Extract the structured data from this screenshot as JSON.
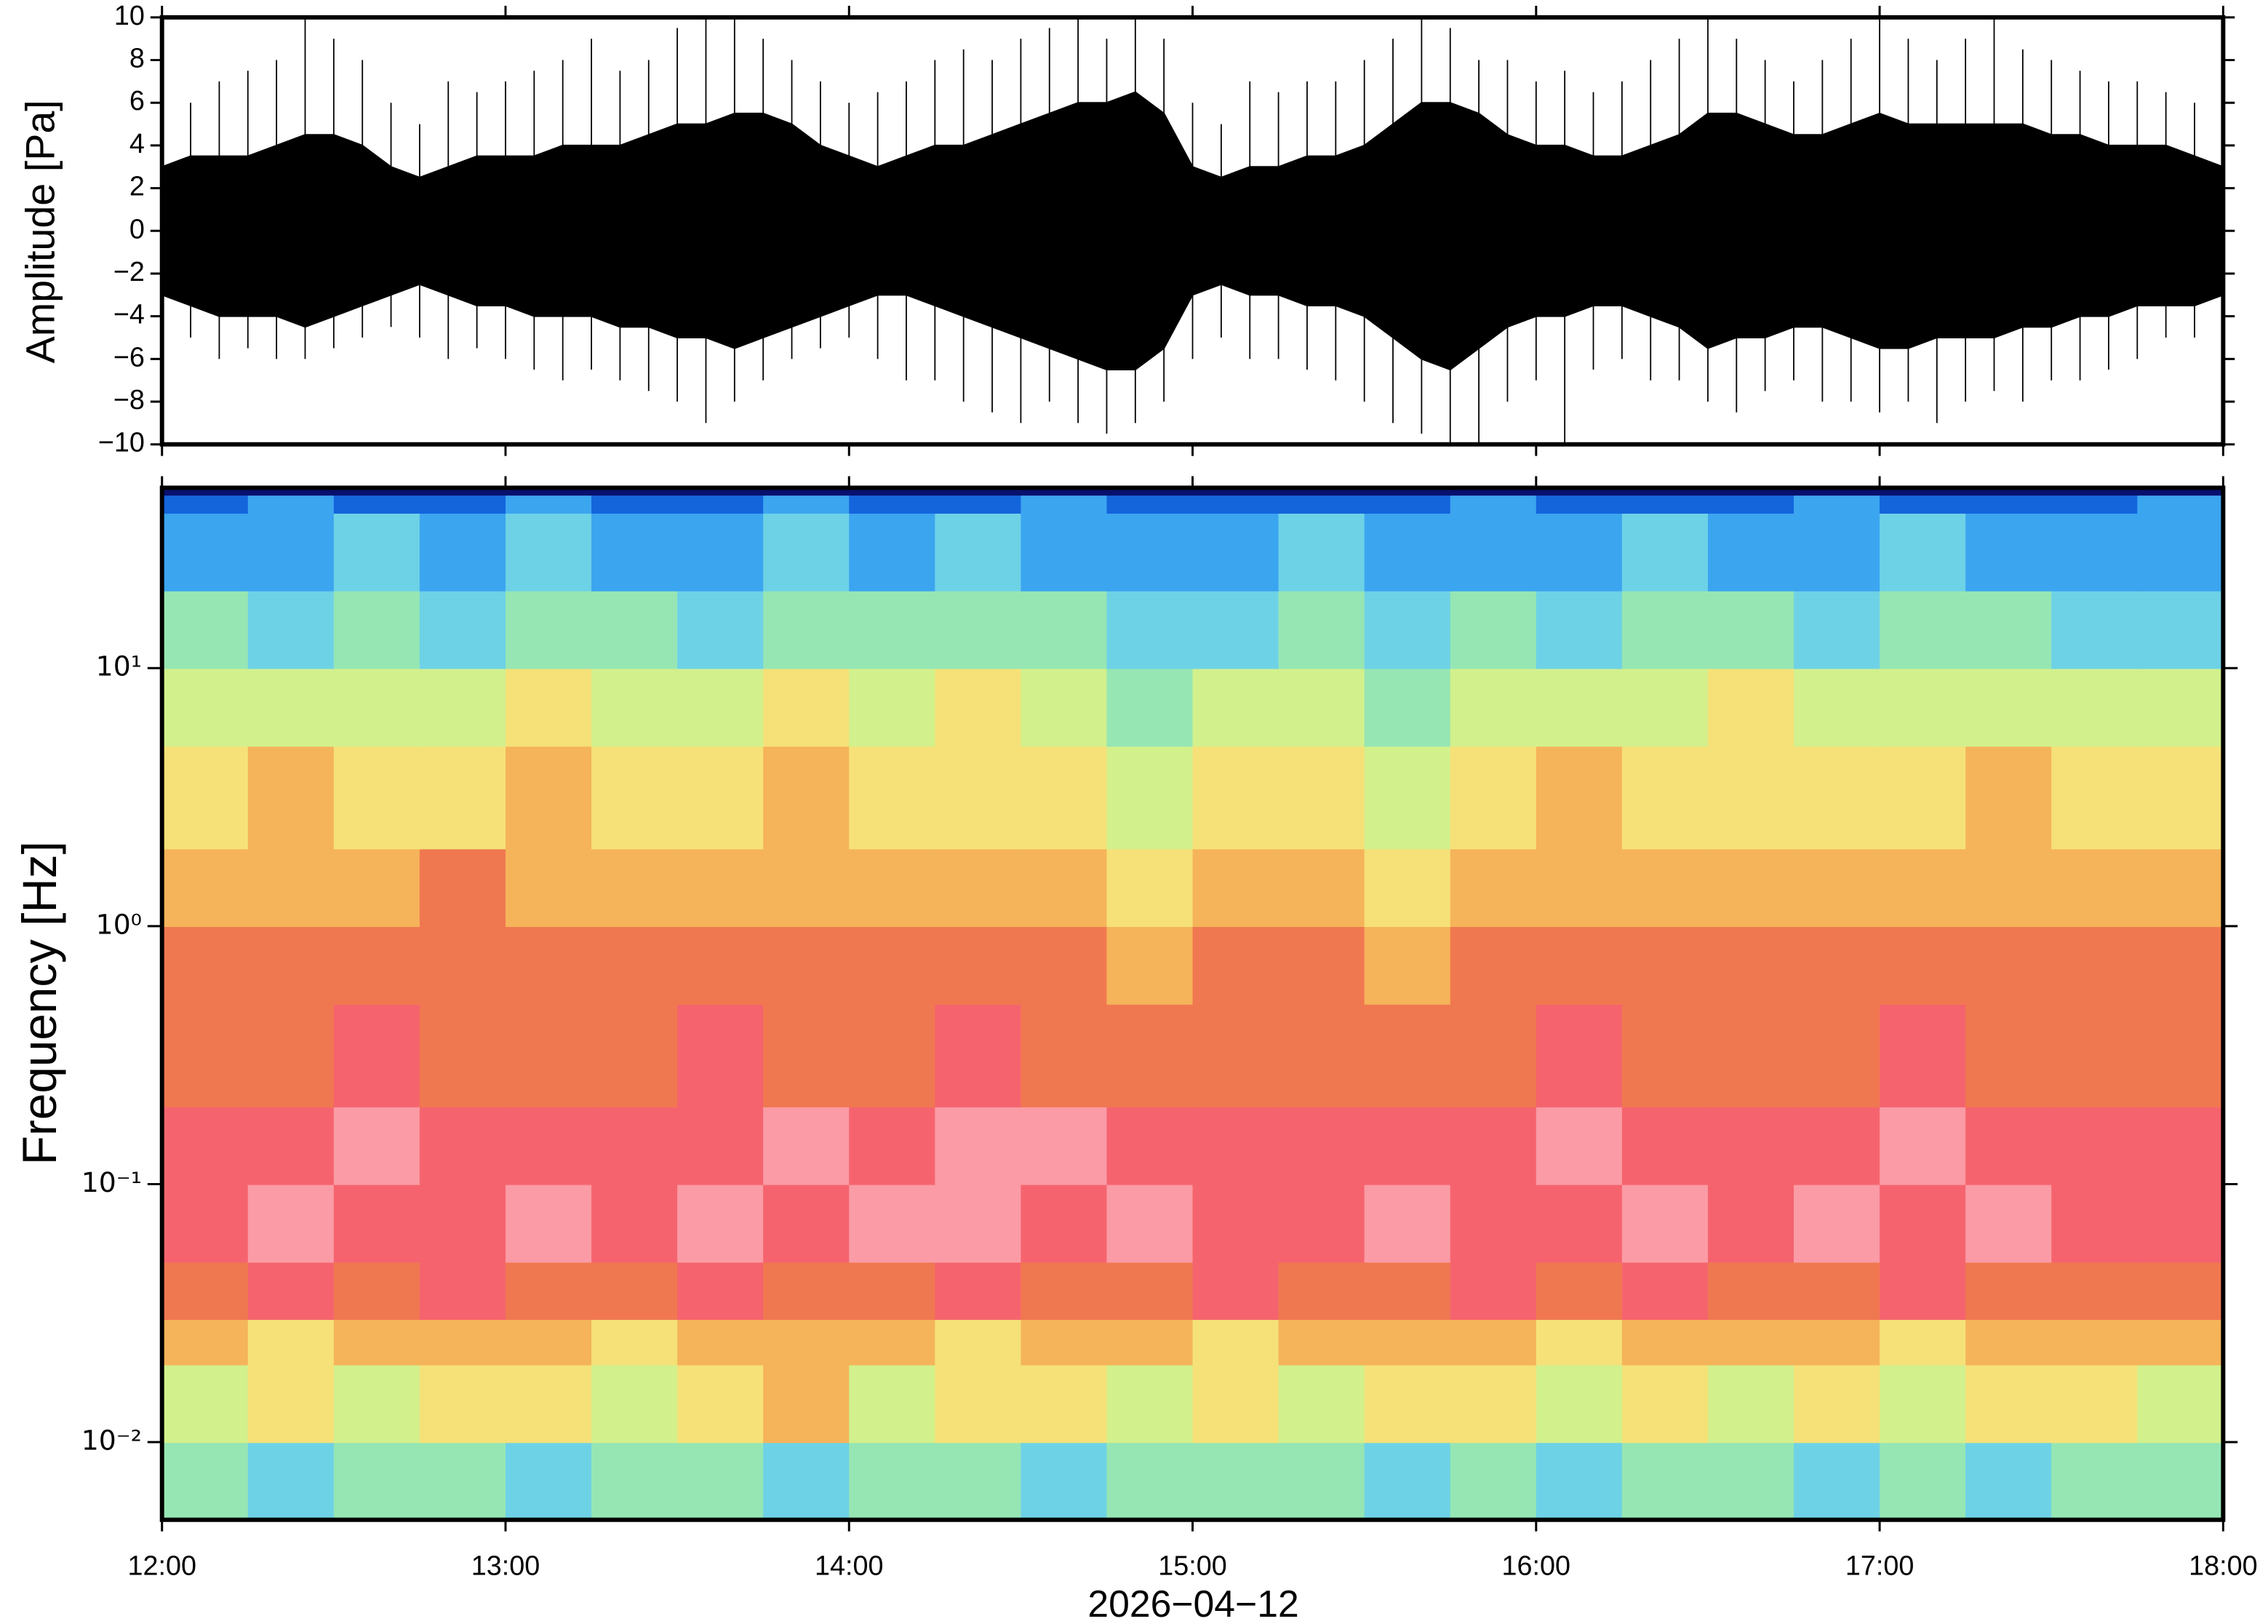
{
  "chart_data": [
    {
      "type": "waveform",
      "ylabel": "Amplitude [Pa]",
      "xlim": [
        0,
        360
      ],
      "xticks": [
        0,
        60,
        120,
        180,
        240,
        300,
        360
      ],
      "ylim": [
        -10,
        10
      ],
      "yticks": [
        {
          "value": -10,
          "label": "−10"
        },
        {
          "value": -8,
          "label": "−8"
        },
        {
          "value": -6,
          "label": "−6"
        },
        {
          "value": -4,
          "label": "−4"
        },
        {
          "value": -2,
          "label": "−2"
        },
        0,
        2,
        4,
        6,
        8,
        10
      ],
      "color": "#000000",
      "x": [
        0,
        5,
        10,
        15,
        20,
        25,
        30,
        35,
        40,
        45,
        50,
        55,
        60,
        65,
        70,
        75,
        80,
        85,
        90,
        95,
        100,
        105,
        110,
        115,
        120,
        125,
        130,
        135,
        140,
        145,
        150,
        155,
        160,
        165,
        170,
        175,
        180,
        185,
        190,
        195,
        200,
        205,
        210,
        215,
        220,
        225,
        230,
        235,
        240,
        245,
        250,
        255,
        260,
        265,
        270,
        275,
        280,
        285,
        290,
        295,
        300,
        305,
        310,
        315,
        320,
        325,
        330,
        335,
        340,
        345,
        350,
        355,
        360
      ],
      "core_upper": [
        3,
        3.5,
        3.5,
        3.5,
        4,
        4.5,
        4.5,
        4,
        3,
        2.5,
        3,
        3.5,
        3.5,
        3.5,
        4,
        4,
        4,
        4.5,
        5,
        5,
        5.5,
        5.5,
        5,
        4,
        3.5,
        3,
        3.5,
        4,
        4,
        4.5,
        5,
        5.5,
        6,
        6,
        6.5,
        5.5,
        3,
        2.5,
        3,
        3,
        3.5,
        3.5,
        4,
        5,
        6,
        6,
        5.5,
        4.5,
        4,
        4,
        3.5,
        3.5,
        4,
        4.5,
        5.5,
        5.5,
        5,
        4.5,
        4.5,
        5,
        5.5,
        5,
        5,
        5,
        5,
        5,
        4.5,
        4.5,
        4,
        4,
        4,
        3.5,
        3
      ],
      "core_lower": [
        -3,
        -3.5,
        -4,
        -4,
        -4,
        -4.5,
        -4,
        -3.5,
        -3,
        -2.5,
        -3,
        -3.5,
        -3.5,
        -4,
        -4,
        -4,
        -4.5,
        -4.5,
        -5,
        -5,
        -5.5,
        -5,
        -4.5,
        -4,
        -3.5,
        -3,
        -3,
        -3.5,
        -4,
        -4.5,
        -5,
        -5.5,
        -6,
        -6.5,
        -6.5,
        -5.5,
        -3,
        -2.5,
        -3,
        -3,
        -3.5,
        -3.5,
        -4,
        -5,
        -6,
        -6.5,
        -5.5,
        -4.5,
        -4,
        -4,
        -3.5,
        -3.5,
        -4,
        -4.5,
        -5.5,
        -5,
        -5,
        -4.5,
        -4.5,
        -5,
        -5.5,
        -5.5,
        -5,
        -5,
        -5,
        -4.5,
        -4.5,
        -4,
        -4,
        -3.5,
        -3.5,
        -3.5,
        -3
      ],
      "peak_upper": [
        5,
        6,
        7,
        7.5,
        8,
        10,
        9,
        8,
        6,
        5,
        7,
        6.5,
        7,
        7.5,
        8,
        9,
        7.5,
        8,
        9.5,
        10,
        10,
        9,
        8,
        7,
        6,
        6.5,
        7,
        8,
        8.5,
        8,
        9,
        9.5,
        10,
        9,
        10,
        9,
        6,
        5,
        7,
        6.5,
        7,
        7,
        8,
        9,
        10,
        9.5,
        8,
        8,
        7,
        7.5,
        6.5,
        7,
        8,
        9,
        10,
        9,
        8,
        7,
        8,
        9,
        10,
        9,
        8,
        9,
        10,
        8.5,
        8,
        7.5,
        7,
        7,
        6.5,
        6,
        5
      ],
      "peak_lower": [
        -4,
        -5,
        -6,
        -5.5,
        -6,
        -6,
        -5.5,
        -5,
        -4.5,
        -5,
        -6,
        -5.5,
        -6,
        -6.5,
        -7,
        -6.5,
        -7,
        -7.5,
        -8,
        -9,
        -8,
        -7,
        -6,
        -5.5,
        -5,
        -6,
        -7,
        -7,
        -8,
        -8.5,
        -9,
        -8,
        -9,
        -9.5,
        -9,
        -8,
        -6,
        -5,
        -6,
        -6,
        -6.5,
        -7,
        -8,
        -9,
        -9.5,
        -10,
        -10,
        -8,
        -7,
        -10,
        -6.5,
        -6,
        -7,
        -7,
        -8,
        -8.5,
        -7.5,
        -7,
        -8,
        -8,
        -8.5,
        -8,
        -9,
        -8,
        -7.5,
        -8,
        -7,
        -7,
        -6.5,
        -6,
        -5,
        -5,
        -4
      ]
    },
    {
      "type": "spectrogram",
      "ylabel": "Frequency [Hz]",
      "xlabel": "2026−04−12",
      "xlim": [
        0,
        360
      ],
      "xticks": [
        {
          "value": 0,
          "label": "12:00"
        },
        {
          "value": 60,
          "label": "13:00"
        },
        {
          "value": 120,
          "label": "14:00"
        },
        {
          "value": 180,
          "label": "15:00"
        },
        {
          "value": 240,
          "label": "16:00"
        },
        {
          "value": 300,
          "label": "17:00"
        },
        {
          "value": 360,
          "label": "18:00"
        }
      ],
      "ylim": [
        0.005,
        50
      ],
      "log_y": true,
      "yticks": [
        {
          "value": 0.01,
          "label": "10⁻²"
        },
        {
          "value": 0.1,
          "label": "10⁻¹"
        },
        {
          "value": 1,
          "label": "10⁰"
        },
        {
          "value": 10,
          "label": "10¹"
        }
      ],
      "time_edges": [
        0,
        15,
        30,
        45,
        60,
        75,
        90,
        105,
        120,
        135,
        150,
        165,
        180,
        195,
        210,
        225,
        240,
        255,
        270,
        285,
        300,
        315,
        330,
        345,
        360
      ],
      "frequency_edges": [
        0.005,
        0.01,
        0.02,
        0.03,
        0.05,
        0.1,
        0.2,
        0.5,
        1,
        2,
        5,
        10,
        20,
        40,
        47,
        50
      ],
      "zlim": [
        0,
        10
      ],
      "colormap": [
        "#08106e",
        "#1464dc",
        "#3ca5f0",
        "#6ed2e6",
        "#96e6b4",
        "#d2f08c",
        "#f5e178",
        "#f5b45a",
        "#f07850",
        "#f5646e",
        "#fa9ba5"
      ],
      "values": [
        [
          4,
          3,
          4,
          4,
          3,
          4,
          4,
          3,
          4,
          4,
          3,
          4,
          4,
          4,
          3,
          4,
          3,
          4,
          4,
          3,
          4,
          3,
          4,
          4
        ],
        [
          5,
          6,
          5,
          6,
          6,
          5,
          6,
          7,
          5,
          6,
          6,
          5,
          6,
          5,
          6,
          6,
          5,
          6,
          5,
          6,
          5,
          6,
          6,
          5
        ],
        [
          7,
          6,
          7,
          7,
          7,
          6,
          7,
          7,
          7,
          6,
          7,
          7,
          6,
          7,
          7,
          7,
          6,
          7,
          7,
          7,
          6,
          7,
          7,
          7
        ],
        [
          8,
          9,
          8,
          9,
          8,
          8,
          9,
          8,
          8,
          9,
          8,
          8,
          9,
          8,
          8,
          9,
          8,
          9,
          8,
          8,
          9,
          8,
          8,
          8
        ],
        [
          9,
          10,
          9,
          9,
          10,
          9,
          10,
          9,
          10,
          10,
          9,
          10,
          9,
          9,
          10,
          9,
          9,
          10,
          9,
          10,
          9,
          10,
          9,
          9
        ],
        [
          9,
          9,
          10,
          9,
          9,
          9,
          9,
          10,
          9,
          10,
          10,
          9,
          9,
          9,
          9,
          9,
          10,
          9,
          9,
          9,
          10,
          9,
          9,
          9
        ],
        [
          8,
          8,
          9,
          8,
          8,
          8,
          9,
          8,
          8,
          9,
          8,
          8,
          8,
          8,
          8,
          8,
          9,
          8,
          8,
          8,
          9,
          8,
          8,
          8
        ],
        [
          8,
          8,
          8,
          8,
          8,
          8,
          8,
          8,
          8,
          8,
          8,
          7,
          8,
          8,
          7,
          8,
          8,
          8,
          8,
          8,
          8,
          8,
          8,
          8
        ],
        [
          7,
          7,
          7,
          8,
          7,
          7,
          7,
          7,
          7,
          7,
          7,
          6,
          7,
          7,
          6,
          7,
          7,
          7,
          7,
          7,
          7,
          7,
          7,
          7
        ],
        [
          6,
          7,
          6,
          6,
          7,
          6,
          6,
          7,
          6,
          6,
          6,
          5,
          6,
          6,
          5,
          6,
          7,
          6,
          6,
          6,
          6,
          7,
          6,
          6
        ],
        [
          5,
          5,
          5,
          5,
          6,
          5,
          5,
          6,
          5,
          6,
          5,
          4,
          5,
          5,
          4,
          5,
          5,
          5,
          6,
          5,
          5,
          5,
          5,
          5
        ],
        [
          4,
          3,
          4,
          3,
          4,
          4,
          3,
          4,
          4,
          4,
          4,
          3,
          3,
          4,
          3,
          4,
          3,
          4,
          4,
          3,
          4,
          4,
          3,
          3
        ],
        [
          2,
          2,
          3,
          2,
          3,
          2,
          2,
          3,
          2,
          3,
          2,
          2,
          2,
          3,
          2,
          2,
          2,
          3,
          2,
          2,
          3,
          2,
          2,
          2
        ],
        [
          1,
          2,
          1,
          1,
          2,
          1,
          1,
          2,
          1,
          1,
          2,
          1,
          1,
          1,
          1,
          2,
          1,
          1,
          1,
          2,
          1,
          1,
          1,
          2
        ],
        [
          0,
          0,
          0,
          0,
          0,
          0,
          0,
          0,
          0,
          0,
          0,
          0,
          0,
          0,
          0,
          0,
          0,
          0,
          0,
          0,
          0,
          0,
          0,
          0
        ]
      ]
    }
  ]
}
